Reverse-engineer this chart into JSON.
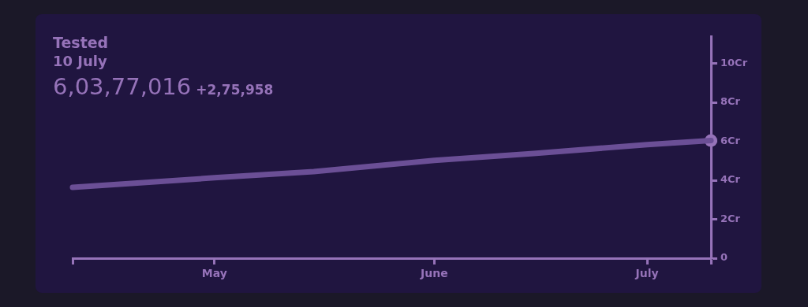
{
  "chart_data": {
    "type": "line",
    "title": "Tested",
    "subtitle": "10 July",
    "annotations": [
      "6,03,77,016",
      "+2,75,958"
    ],
    "x": [
      "--04-11",
      "--05-01",
      "--05-15",
      "--06-01",
      "--06-15",
      "--07-01",
      "--07-10"
    ],
    "series": [
      {
        "color": "#6b4f96",
        "values": [
          3.64,
          4.13,
          4.45,
          5.02,
          5.38,
          5.83,
          6.04
        ]
      },
      {
        "type": "scatter",
        "x": [
          "--07-10"
        ],
        "color": "#9673b9",
        "values": [
          6.04
        ]
      }
    ],
    "xlim": [
      "--04-11",
      "--07-10"
    ],
    "xticks": [
      {
        "value": "--04-11",
        "label": null
      },
      {
        "value": "--05-01",
        "label": "May"
      },
      {
        "value": "--06-01",
        "label": "June"
      },
      {
        "value": "--07-01",
        "label": "July"
      },
      {
        "value": "--07-10",
        "label": null
      }
    ],
    "ylim": [
      0,
      11.4
    ],
    "yticks": [
      {
        "value": 0,
        "label": "0"
      },
      {
        "value": 2,
        "label": "2Cr"
      },
      {
        "value": 4,
        "label": "4Cr"
      },
      {
        "value": 6,
        "label": "6Cr"
      },
      {
        "value": 8,
        "label": "8Cr"
      },
      {
        "value": 10,
        "label": "10Cr"
      }
    ],
    "grid": false,
    "legend": false,
    "line_style": "solid"
  }
}
